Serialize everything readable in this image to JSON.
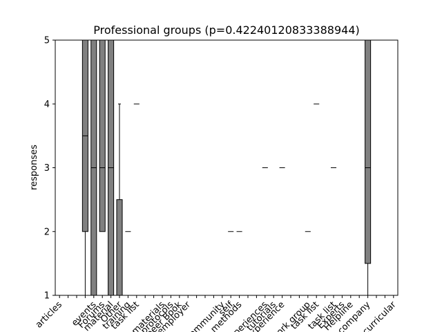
{
  "chart_data": {
    "type": "box",
    "title": "Professional groups (p=0.42240120833388944)",
    "ylabel": "responses",
    "xlabel": "",
    "ylim": [
      1,
      5
    ],
    "yticks": [
      1,
      2,
      3,
      4,
      5
    ],
    "box_color": "#808080",
    "categories": [
      "articles",
      "",
      "",
      "",
      "events",
      "Forums",
      "material",
      "Other",
      "training",
      "task list",
      "",
      "",
      "materials",
      "protocols",
      "peer Book",
      "employer",
      "",
      "",
      "",
      "community",
      "self",
      "methods",
      "",
      "",
      "experiences",
      "tutorials",
      "experience",
      "",
      "",
      "work group",
      "task list",
      "",
      "task list",
      "Experts",
      "Helpline",
      "",
      "company",
      "",
      "",
      "curricular"
    ],
    "boxes": [
      {
        "q1": 5,
        "median": 5,
        "q3": 5,
        "whislo": 5,
        "whishi": 5
      },
      {
        "q1": 5,
        "median": 5,
        "q3": 5,
        "whislo": 5,
        "whishi": 5
      },
      {
        "q1": 5,
        "median": 5,
        "q3": 5,
        "whislo": 5,
        "whishi": 5
      },
      {
        "q1": 2,
        "median": 3.5,
        "q3": 5,
        "whislo": 1,
        "whishi": 5
      },
      {
        "q1": 1,
        "median": 3,
        "q3": 5,
        "whislo": 1,
        "whishi": 5
      },
      {
        "q1": 2,
        "median": 3,
        "q3": 5,
        "whislo": 2,
        "whishi": 5
      },
      {
        "q1": 1,
        "median": 3,
        "q3": 5,
        "whislo": 1,
        "whishi": 5
      },
      {
        "q1": 1,
        "median": 1,
        "q3": 2.5,
        "whislo": 1,
        "whishi": 4
      },
      {
        "q1": 2,
        "median": 2,
        "q3": 2,
        "whislo": 2,
        "whishi": 2
      },
      {
        "q1": 4,
        "median": 4,
        "q3": 4,
        "whislo": 4,
        "whishi": 4
      },
      {
        "q1": 5,
        "median": 5,
        "q3": 5,
        "whislo": 5,
        "whishi": 5
      },
      {
        "q1": 5,
        "median": 5,
        "q3": 5,
        "whislo": 5,
        "whishi": 5
      },
      {
        "q1": 1,
        "median": 1,
        "q3": 1,
        "whislo": 1,
        "whishi": 1
      },
      {
        "q1": 1,
        "median": 1,
        "q3": 1,
        "whislo": 1,
        "whishi": 1
      },
      {
        "q1": 1,
        "median": 1,
        "q3": 1,
        "whislo": 1,
        "whishi": 1
      },
      {
        "q1": 1,
        "median": 1,
        "q3": 1,
        "whislo": 1,
        "whishi": 1
      },
      {
        "q1": 5,
        "median": 5,
        "q3": 5,
        "whislo": 5,
        "whishi": 5
      },
      {
        "q1": 5,
        "median": 5,
        "q3": 5,
        "whislo": 5,
        "whishi": 5
      },
      {
        "q1": 5,
        "median": 5,
        "q3": 5,
        "whislo": 5,
        "whishi": 5
      },
      {
        "q1": 5,
        "median": 5,
        "q3": 5,
        "whislo": 5,
        "whishi": 5
      },
      {
        "q1": 2,
        "median": 2,
        "q3": 2,
        "whislo": 2,
        "whishi": 2
      },
      {
        "q1": 2,
        "median": 2,
        "q3": 2,
        "whislo": 2,
        "whishi": 2
      },
      {
        "q1": 1,
        "median": 1,
        "q3": 1,
        "whislo": 1,
        "whishi": 1
      },
      {
        "q1": 1,
        "median": 1,
        "q3": 1,
        "whislo": 1,
        "whishi": 1
      },
      {
        "q1": 3,
        "median": 3,
        "q3": 3,
        "whislo": 3,
        "whishi": 3
      },
      {
        "q1": 5,
        "median": 5,
        "q3": 5,
        "whislo": 5,
        "whishi": 5
      },
      {
        "q1": 3,
        "median": 3,
        "q3": 3,
        "whislo": 3,
        "whishi": 3
      },
      {
        "q1": 5,
        "median": 5,
        "q3": 5,
        "whislo": 5,
        "whishi": 5
      },
      {
        "q1": 5,
        "median": 5,
        "q3": 5,
        "whislo": 5,
        "whishi": 5
      },
      {
        "q1": 2,
        "median": 2,
        "q3": 2,
        "whislo": 2,
        "whishi": 2
      },
      {
        "q1": 4,
        "median": 4,
        "q3": 4,
        "whislo": 4,
        "whishi": 4
      },
      {
        "q1": 1,
        "median": 1,
        "q3": 1,
        "whislo": 1,
        "whishi": 1
      },
      {
        "q1": 3,
        "median": 3,
        "q3": 3,
        "whislo": 3,
        "whishi": 3
      },
      {
        "q1": 1,
        "median": 1,
        "q3": 1,
        "whislo": 1,
        "whishi": 1
      },
      {
        "q1": 1,
        "median": 1,
        "q3": 1,
        "whislo": 1,
        "whishi": 1
      },
      {
        "q1": 5,
        "median": 5,
        "q3": 5,
        "whislo": 5,
        "whishi": 5
      },
      {
        "q1": 1.5,
        "median": 3,
        "q3": 5,
        "whislo": 1,
        "whishi": 5
      },
      {
        "q1": 1,
        "median": 1,
        "q3": 1,
        "whislo": 1,
        "whishi": 1
      },
      {
        "q1": 1,
        "median": 1,
        "q3": 1,
        "whislo": 1,
        "whishi": 1
      },
      {
        "q1": 1,
        "median": 1,
        "q3": 1,
        "whislo": 1,
        "whishi": 1
      }
    ]
  }
}
